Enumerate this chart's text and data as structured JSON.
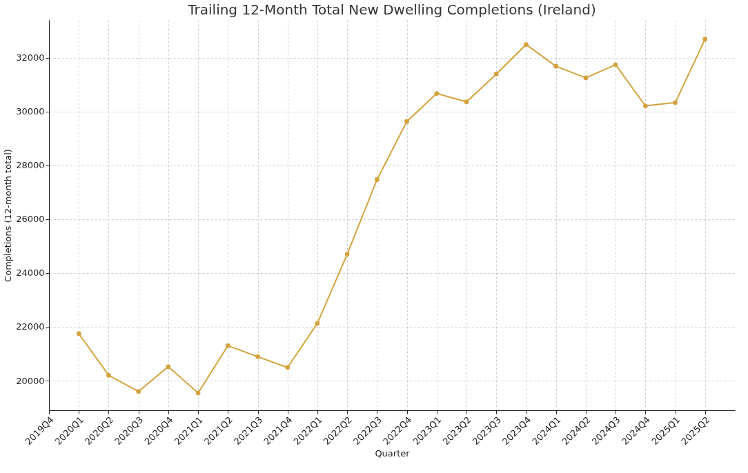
{
  "chart_data": {
    "type": "line",
    "title": "Trailing 12-Month Total New Dwelling Completions (Ireland)",
    "xlabel": "Quarter",
    "ylabel": "Completions (12-month total)",
    "categories": [
      "2019Q4",
      "2020Q1",
      "2020Q2",
      "2020Q3",
      "2020Q4",
      "2021Q1",
      "2021Q2",
      "2021Q3",
      "2021Q4",
      "2022Q1",
      "2022Q2",
      "2022Q3",
      "2022Q4",
      "2023Q1",
      "2023Q2",
      "2023Q3",
      "2023Q4",
      "2024Q1",
      "2024Q2",
      "2024Q3",
      "2024Q4",
      "2025Q1",
      "2025Q2"
    ],
    "series": [
      {
        "color": "#d4a23c",
        "values": [
          null,
          21750,
          20200,
          19600,
          20520,
          19540,
          21300,
          20890,
          20490,
          22130,
          24700,
          27470,
          29630,
          30670,
          30360,
          31390,
          32490,
          31680,
          31250,
          31740,
          30210,
          30330,
          32690
        ]
      }
    ],
    "ylim": [
      18900,
      33400
    ],
    "yticks": [
      20000,
      22000,
      24000,
      26000,
      28000,
      30000,
      32000
    ],
    "grid": true,
    "marker": "circle",
    "line_style": "solid"
  }
}
